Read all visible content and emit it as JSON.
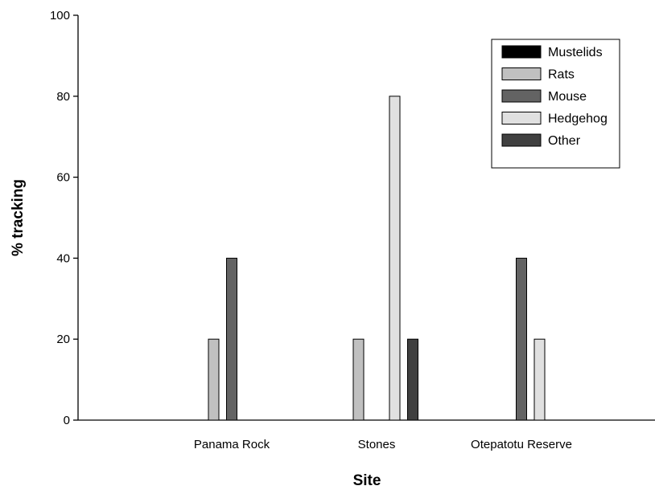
{
  "chart_data": {
    "type": "bar",
    "title": "",
    "xlabel": "Site",
    "ylabel": "% tracking",
    "categories": [
      "Panama Rock",
      "Stones",
      "Otepatotu Reserve"
    ],
    "ylim": [
      0,
      100
    ],
    "yticks": [
      0,
      20,
      40,
      60,
      80,
      100
    ],
    "grid": false,
    "legend_position": "top-right",
    "series": [
      {
        "name": "Mustelids",
        "color": "#000000",
        "values": [
          0,
          0,
          0
        ]
      },
      {
        "name": "Rats",
        "color": "#c0c0c0",
        "values": [
          20,
          20,
          0
        ]
      },
      {
        "name": "Mouse",
        "color": "#636363",
        "values": [
          40,
          0,
          40
        ]
      },
      {
        "name": "Hedgehog",
        "color": "#e0e0e0",
        "values": [
          0,
          80,
          20
        ]
      },
      {
        "name": "Other",
        "color": "#404040",
        "values": [
          0,
          20,
          0
        ]
      }
    ]
  }
}
